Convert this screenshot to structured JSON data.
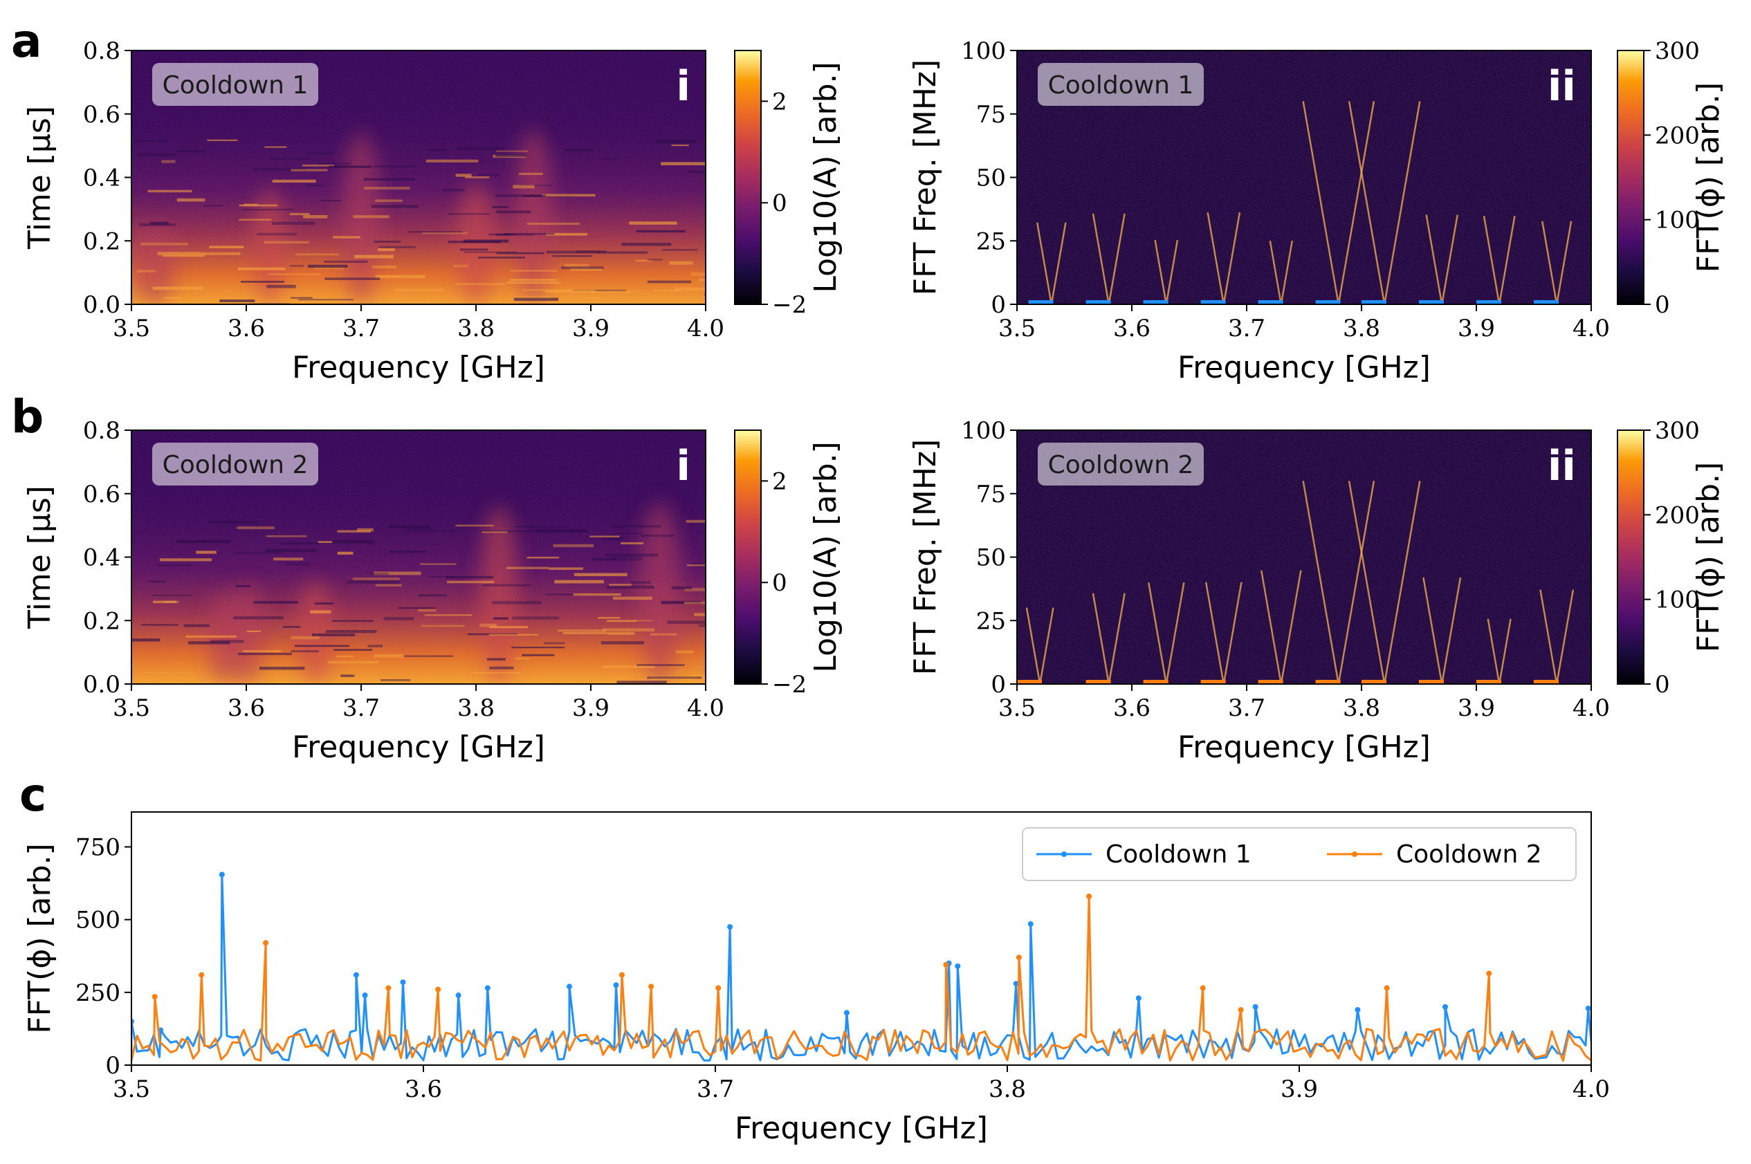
{
  "panels": {
    "a": "a",
    "b": "b",
    "c": "c"
  },
  "colors": {
    "cooldown1": "#1e90ff",
    "cooldown2": "#ff7f0e",
    "badge_bg": "rgba(255,255,255,0.55)"
  },
  "chart_data": [
    {
      "id": "a-i",
      "type": "heatmap",
      "panel": "a",
      "roman": "i",
      "badge": "Cooldown 1",
      "xlabel": "Frequency [GHz]",
      "ylabel": "Time [μs]",
      "xlim": [
        3.5,
        4.0
      ],
      "ylim": [
        0.0,
        0.8
      ],
      "xticks": [
        "3.5",
        "3.6",
        "3.7",
        "3.8",
        "3.9",
        "4.0"
      ],
      "yticks": [
        "0.0",
        "0.2",
        "0.4",
        "0.6",
        "0.8"
      ],
      "colorbar": {
        "label": "Log10(A) [arb.]",
        "range": [
          -2,
          3
        ],
        "ticks": [
          "−2",
          "0",
          "2"
        ],
        "colormap": "inferno"
      },
      "bright_bands_ghz": [
        3.52,
        3.62,
        3.7,
        3.8,
        3.85
      ]
    },
    {
      "id": "a-ii",
      "type": "heatmap",
      "panel": "a",
      "roman": "ii",
      "badge": "Cooldown 1",
      "xlabel": "Frequency [GHz]",
      "ylabel": "FFT Freq. [MHz]",
      "xlim": [
        3.5,
        4.0
      ],
      "ylim": [
        0,
        100
      ],
      "xticks": [
        "3.5",
        "3.6",
        "3.7",
        "3.8",
        "3.9",
        "4.0"
      ],
      "yticks": [
        "0",
        "25",
        "50",
        "75",
        "100"
      ],
      "colorbar": {
        "label": "FFT(ϕ) [arb.]",
        "range": [
          0,
          300
        ],
        "ticks": [
          "0",
          "100",
          "200",
          "300"
        ],
        "colormap": "inferno"
      },
      "v_minima_ghz": [
        3.53,
        3.58,
        3.63,
        3.68,
        3.73,
        3.78,
        3.82,
        3.87,
        3.92,
        3.97
      ],
      "window_marker_color": "#1e90ff"
    },
    {
      "id": "b-i",
      "type": "heatmap",
      "panel": "b",
      "roman": "i",
      "badge": "Cooldown 2",
      "xlabel": "Frequency [GHz]",
      "ylabel": "Time [μs]",
      "xlim": [
        3.5,
        4.0
      ],
      "ylim": [
        0.0,
        0.8
      ],
      "xticks": [
        "3.5",
        "3.6",
        "3.7",
        "3.8",
        "3.9",
        "4.0"
      ],
      "yticks": [
        "0.0",
        "0.2",
        "0.4",
        "0.6",
        "0.8"
      ],
      "colorbar": {
        "label": "Log10(A) [arb.]",
        "range": [
          -2,
          3
        ],
        "ticks": [
          "−2",
          "0",
          "2"
        ],
        "colormap": "inferno"
      },
      "bright_bands_ghz": [
        3.6,
        3.66,
        3.58,
        3.82,
        3.96
      ]
    },
    {
      "id": "b-ii",
      "type": "heatmap",
      "panel": "b",
      "roman": "ii",
      "badge": "Cooldown 2",
      "xlabel": "Frequency [GHz]",
      "ylabel": "FFT Freq. [MHz]",
      "xlim": [
        3.5,
        4.0
      ],
      "ylim": [
        0,
        100
      ],
      "xticks": [
        "3.5",
        "3.6",
        "3.7",
        "3.8",
        "3.9",
        "4.0"
      ],
      "yticks": [
        "0",
        "25",
        "50",
        "75",
        "100"
      ],
      "colorbar": {
        "label": "FFT(ϕ) [arb.]",
        "range": [
          0,
          300
        ],
        "ticks": [
          "0",
          "100",
          "200",
          "300"
        ],
        "colormap": "inferno"
      },
      "v_minima_ghz": [
        3.52,
        3.58,
        3.63,
        3.68,
        3.73,
        3.78,
        3.82,
        3.87,
        3.92,
        3.97
      ],
      "window_marker_color": "#ff7f0e"
    },
    {
      "id": "c",
      "type": "line",
      "panel": "c",
      "xlabel": "Frequency [GHz]",
      "ylabel": "FFT(ϕ) [arb.]",
      "xlim": [
        3.5,
        4.0
      ],
      "ylim": [
        0,
        870
      ],
      "xticks": [
        "3.5",
        "3.6",
        "3.7",
        "3.8",
        "3.9",
        "4.0"
      ],
      "yticks": [
        "0",
        "250",
        "500",
        "750"
      ],
      "legend": "top-right",
      "series": [
        {
          "name": "Cooldown 1",
          "color": "#1e90ff",
          "peaks": [
            {
              "x": 3.5,
              "y": 150
            },
            {
              "x": 3.51,
              "y": 120
            },
            {
              "x": 3.531,
              "y": 655
            },
            {
              "x": 3.577,
              "y": 310
            },
            {
              "x": 3.58,
              "y": 240
            },
            {
              "x": 3.593,
              "y": 285
            },
            {
              "x": 3.612,
              "y": 240
            },
            {
              "x": 3.622,
              "y": 265
            },
            {
              "x": 3.65,
              "y": 270
            },
            {
              "x": 3.666,
              "y": 275
            },
            {
              "x": 3.705,
              "y": 475
            },
            {
              "x": 3.745,
              "y": 180
            },
            {
              "x": 3.78,
              "y": 350
            },
            {
              "x": 3.783,
              "y": 340
            },
            {
              "x": 3.803,
              "y": 280
            },
            {
              "x": 3.808,
              "y": 485
            },
            {
              "x": 3.845,
              "y": 230
            },
            {
              "x": 3.885,
              "y": 200
            },
            {
              "x": 3.92,
              "y": 190
            },
            {
              "x": 3.95,
              "y": 200
            },
            {
              "x": 3.999,
              "y": 195
            }
          ]
        },
        {
          "name": "Cooldown 2",
          "color": "#ff7f0e",
          "peaks": [
            {
              "x": 3.508,
              "y": 235
            },
            {
              "x": 3.524,
              "y": 310
            },
            {
              "x": 3.546,
              "y": 420
            },
            {
              "x": 3.588,
              "y": 265
            },
            {
              "x": 3.605,
              "y": 260
            },
            {
              "x": 3.668,
              "y": 310
            },
            {
              "x": 3.678,
              "y": 270
            },
            {
              "x": 3.701,
              "y": 265
            },
            {
              "x": 3.779,
              "y": 345
            },
            {
              "x": 3.804,
              "y": 370
            },
            {
              "x": 3.828,
              "y": 580
            },
            {
              "x": 3.867,
              "y": 265
            },
            {
              "x": 3.88,
              "y": 190
            },
            {
              "x": 3.93,
              "y": 265
            },
            {
              "x": 3.965,
              "y": 315
            }
          ]
        }
      ]
    }
  ]
}
